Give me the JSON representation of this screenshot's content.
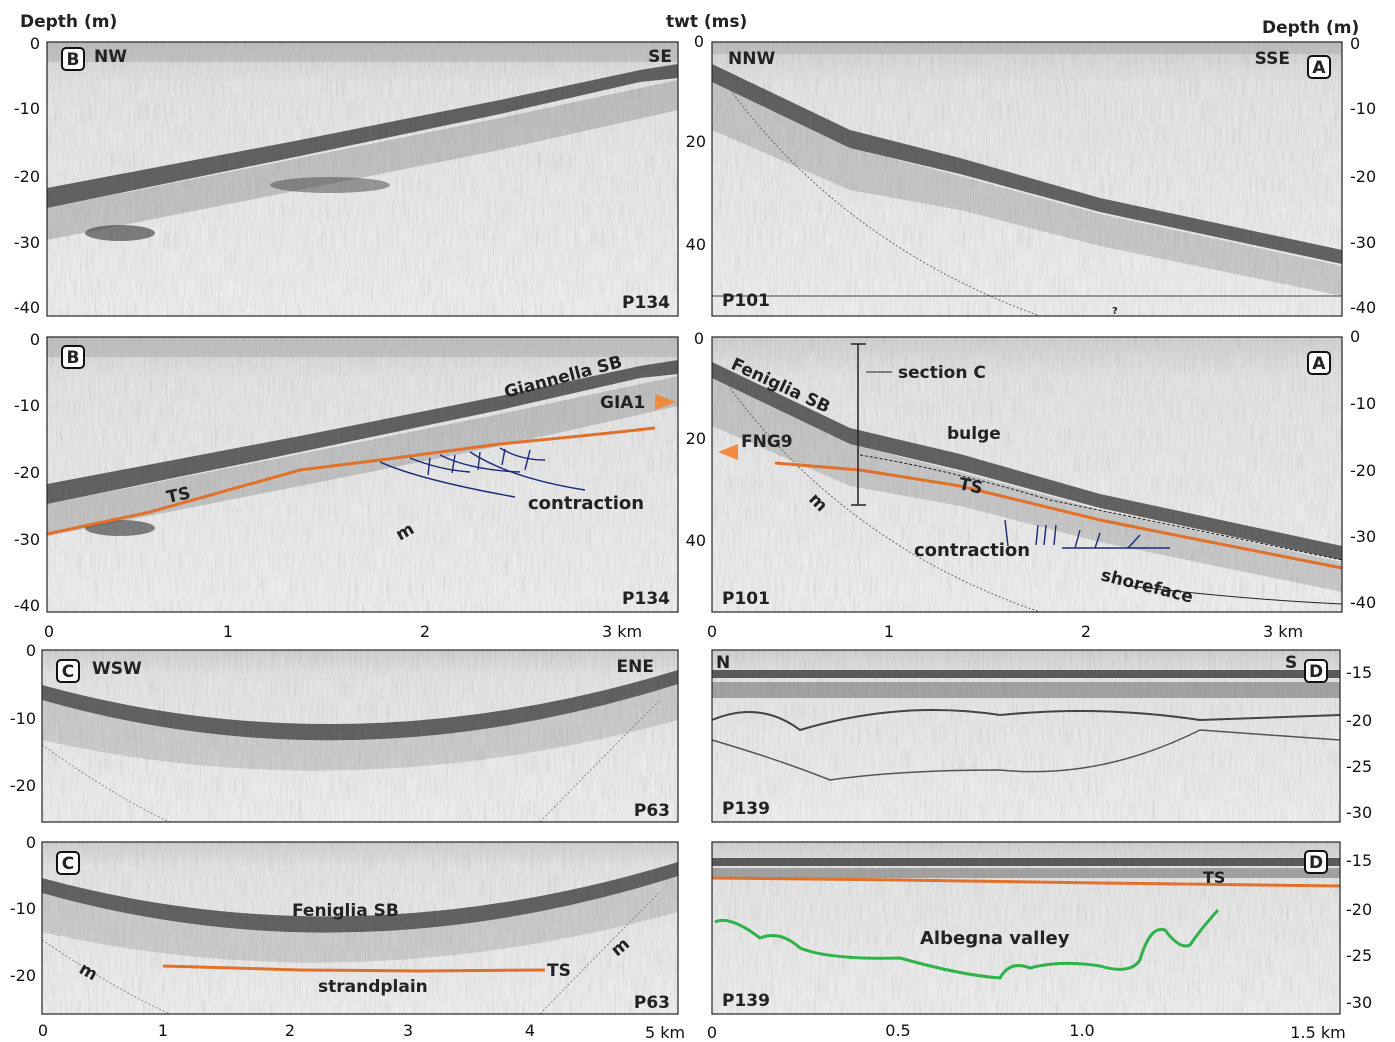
{
  "axis_titles": {
    "depth_left": "Depth (m)",
    "twt": "twt (ms)",
    "depth_right": "Depth (m)"
  },
  "panels": [
    {
      "id": "p1",
      "badge": "B",
      "dir_left": "NW",
      "dir_right": "SE",
      "profile": "P134"
    },
    {
      "id": "p2",
      "badge": "B",
      "profile": "P134",
      "labels": {
        "sb": "Giannella SB",
        "core": "GIA1",
        "ts": "TS",
        "contraction": "contraction",
        "m": "m"
      }
    },
    {
      "id": "p3",
      "badge": "A",
      "dir_left": "NNW",
      "dir_right": "SSE",
      "profile": "P101",
      "marker": "?"
    },
    {
      "id": "p4",
      "badge": "A",
      "profile": "P101",
      "labels": {
        "sb": "Feniglia SB",
        "core": "FNG9",
        "section": "section C",
        "bulge": "bulge",
        "ts": "TS",
        "m": "m",
        "contraction": "contraction",
        "shoreface": "shoreface"
      }
    },
    {
      "id": "p5",
      "badge": "C",
      "dir_left": "WSW",
      "dir_right": "ENE",
      "profile": "P63"
    },
    {
      "id": "p6",
      "badge": "C",
      "profile": "P63",
      "labels": {
        "sb": "Feniglia SB",
        "ts": "TS",
        "strandplain": "strandplain",
        "m1": "m",
        "m2": "m"
      }
    },
    {
      "id": "p7",
      "badge": "D",
      "dir_left": "N",
      "dir_right": "S",
      "profile": "P139"
    },
    {
      "id": "p8",
      "badge": "D",
      "profile": "P139",
      "labels": {
        "ts": "TS",
        "valley": "Albegna valley"
      }
    }
  ],
  "ticks": {
    "depth_40": [
      "0",
      "-10",
      "-20",
      "-30",
      "-40"
    ],
    "twt_top": [
      "0",
      "20",
      "40"
    ],
    "twt_bottom": [
      "0",
      "20",
      "40"
    ],
    "depth_c": [
      "0",
      "-10",
      "-20"
    ],
    "depth_d": [
      "-15",
      "-20",
      "-25",
      "-30"
    ],
    "km_ab": [
      "0",
      "1",
      "2",
      "3 km"
    ],
    "km_c": [
      "0",
      "1",
      "2",
      "3",
      "4",
      "5 km"
    ],
    "km_d": [
      "0",
      "0.5",
      "1.0",
      "1.5 km"
    ]
  },
  "colors": {
    "ts": "#e0712a",
    "contraction": "#1a2a7a",
    "valley": "#2fb24a",
    "marker": "#f08a3c"
  }
}
